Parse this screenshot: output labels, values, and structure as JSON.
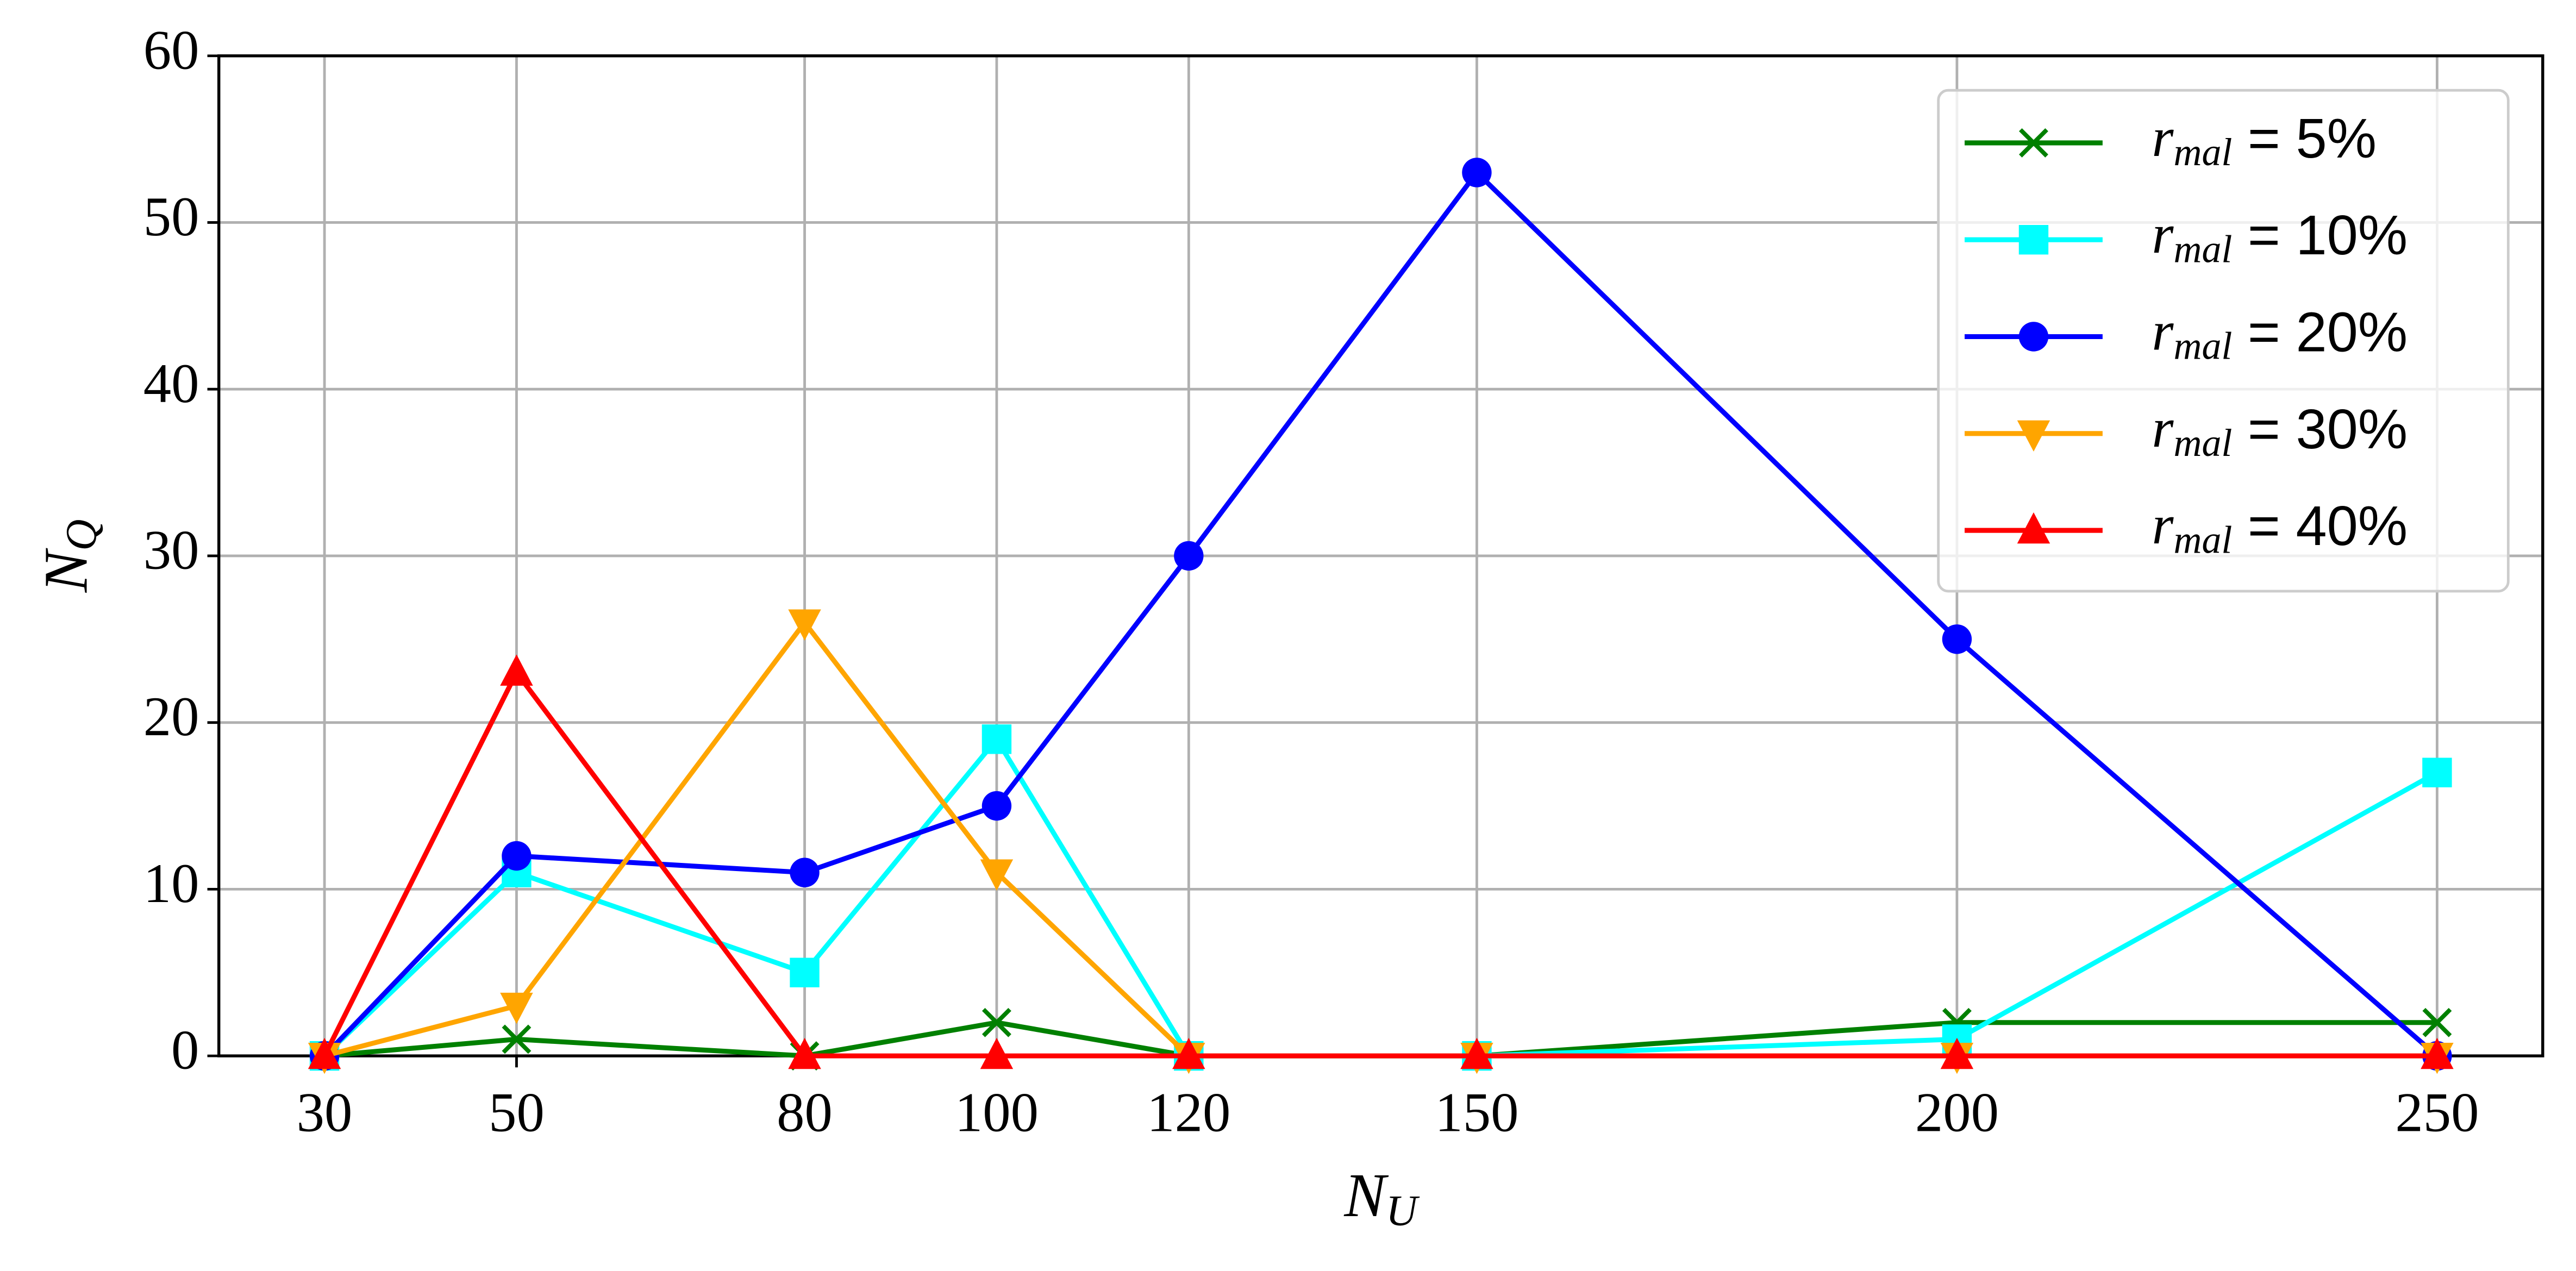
{
  "chart_data": {
    "type": "line",
    "x": [
      30,
      50,
      80,
      100,
      120,
      150,
      200,
      250
    ],
    "xlabel": "NU",
    "ylabel": "NQ",
    "xlim": [
      19,
      261
    ],
    "xticks": [
      30,
      50,
      80,
      100,
      120,
      150,
      200,
      250
    ],
    "ylim": [
      0,
      60
    ],
    "yticks": [
      0,
      10,
      20,
      30,
      40,
      50,
      60
    ],
    "grid": true,
    "legend": "upper right",
    "series": [
      {
        "name": "rmal = 5%",
        "color": "#008000",
        "marker": "x",
        "values": [
          0,
          1,
          0,
          2,
          0,
          0,
          2,
          2
        ]
      },
      {
        "name": "rmal = 10%",
        "color": "#00ffff",
        "marker": "s",
        "values": [
          0,
          11,
          5,
          19,
          0,
          0,
          1,
          17
        ]
      },
      {
        "name": "rmal = 20%",
        "color": "#0000ff",
        "marker": "o",
        "values": [
          0,
          12,
          11,
          15,
          30,
          53,
          25,
          0
        ]
      },
      {
        "name": "rmal = 30%",
        "color": "#ffa500",
        "marker": "v",
        "values": [
          0,
          3,
          26,
          11,
          0,
          0,
          0,
          0
        ]
      },
      {
        "name": "rmal = 40%",
        "color": "#ff0000",
        "marker": "^",
        "values": [
          0,
          23,
          0,
          0,
          0,
          0,
          0,
          0
        ]
      }
    ]
  }
}
